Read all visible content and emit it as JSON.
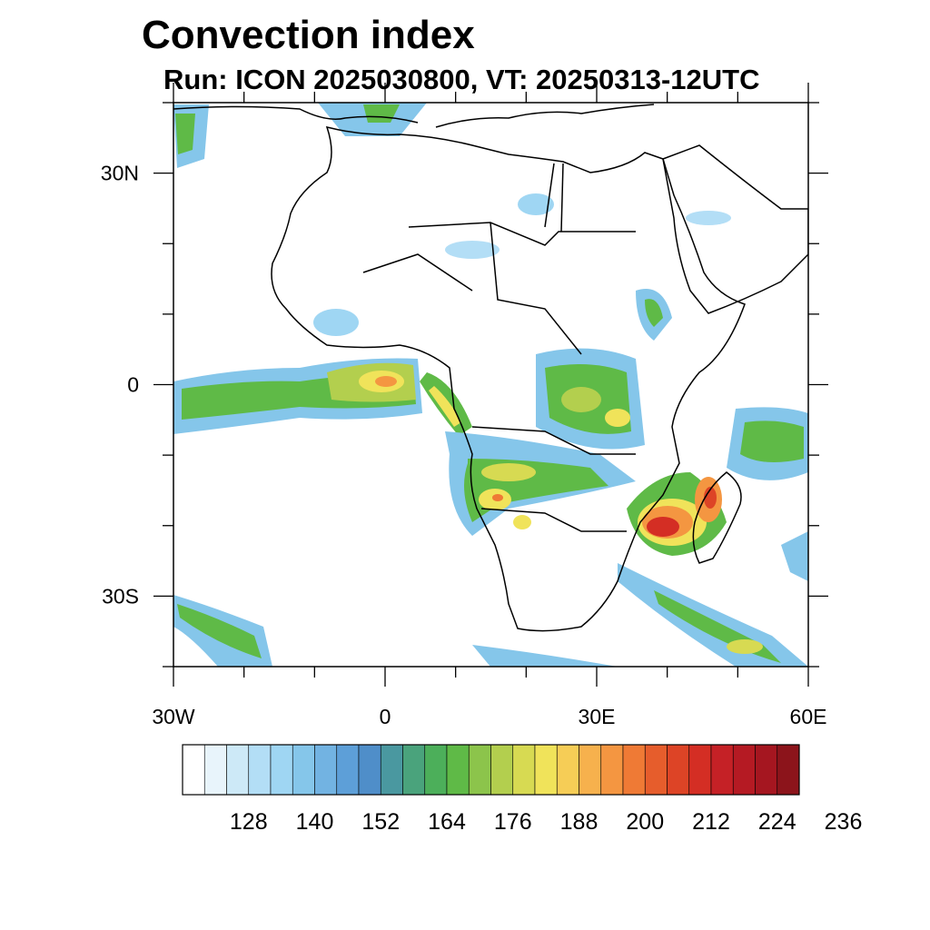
{
  "header": {
    "title": "Convection index",
    "subtitle": "Run: ICON 2025030800,  VT: 20250313-12UTC"
  },
  "map": {
    "lon_range": [
      -30,
      60
    ],
    "lat_range": [
      -40,
      40
    ],
    "lat_ticks": [
      {
        "lat": 30,
        "label": "30N"
      },
      {
        "lat": 0,
        "label": "0"
      },
      {
        "lat": -30,
        "label": "30S"
      }
    ],
    "lon_ticks": [
      {
        "lon": -30,
        "label": "30W"
      },
      {
        "lon": 0,
        "label": "0"
      },
      {
        "lon": 30,
        "label": "30E"
      },
      {
        "lon": 60,
        "label": "60E"
      }
    ]
  },
  "colorbar": {
    "colors": [
      "#ffffff",
      "#e8f4fb",
      "#cde9f7",
      "#b3def6",
      "#9fd6f3",
      "#85c6ea",
      "#72b3e2",
      "#5d9fd8",
      "#4f8ec9",
      "#4a98a0",
      "#4aa37c",
      "#4caf5a",
      "#5fba47",
      "#8cc44b",
      "#b3cf4e",
      "#d7da52",
      "#f0e35a",
      "#f6cd56",
      "#f6b14d",
      "#f49641",
      "#ef7a35",
      "#e65d2c",
      "#dd4426",
      "#d42e24",
      "#c52126",
      "#b51a23",
      "#a51620",
      "#8c141b"
    ],
    "labels": [
      "128",
      "140",
      "152",
      "164",
      "176",
      "188",
      "200",
      "212",
      "224",
      "236"
    ]
  }
}
